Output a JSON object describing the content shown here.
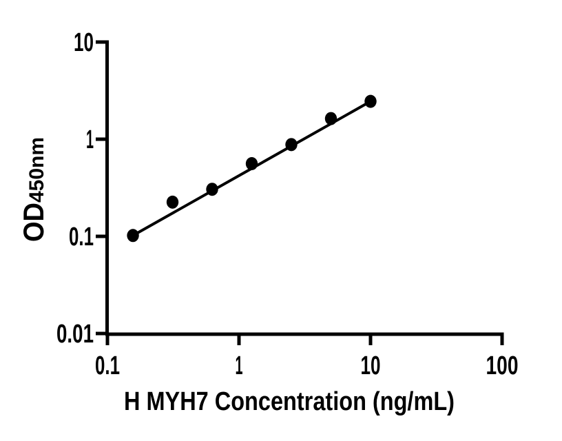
{
  "page": {
    "background": "#ffffff"
  },
  "chart_data": {
    "type": "scatter",
    "title": "",
    "xlabel": "H MYH7 Concentration (ng/mL)",
    "ylabel_main": "OD",
    "ylabel_sub": "450nm",
    "x_scale": "log",
    "y_scale": "log",
    "xlim": [
      0.1,
      100
    ],
    "ylim": [
      0.01,
      10
    ],
    "x_tick_labels": [
      "0.1",
      "1",
      "10",
      "100"
    ],
    "y_tick_labels": [
      "10",
      "1",
      "0.1",
      "0.01"
    ],
    "grid": false,
    "legend": "none",
    "background_color": "#ffffff",
    "axis_color": "#000000",
    "marker_color": "#000000",
    "line_color": "#000000",
    "points": [
      {
        "x": 0.1563,
        "y": 0.102
      },
      {
        "x": 0.3125,
        "y": 0.225
      },
      {
        "x": 0.625,
        "y": 0.305
      },
      {
        "x": 1.25,
        "y": 0.56
      },
      {
        "x": 2.5,
        "y": 0.88
      },
      {
        "x": 5,
        "y": 1.63
      },
      {
        "x": 10,
        "y": 2.45
      }
    ],
    "trend_line": {
      "x1": 0.1563,
      "y1": 0.102,
      "x2": 10,
      "y2": 2.45
    }
  }
}
